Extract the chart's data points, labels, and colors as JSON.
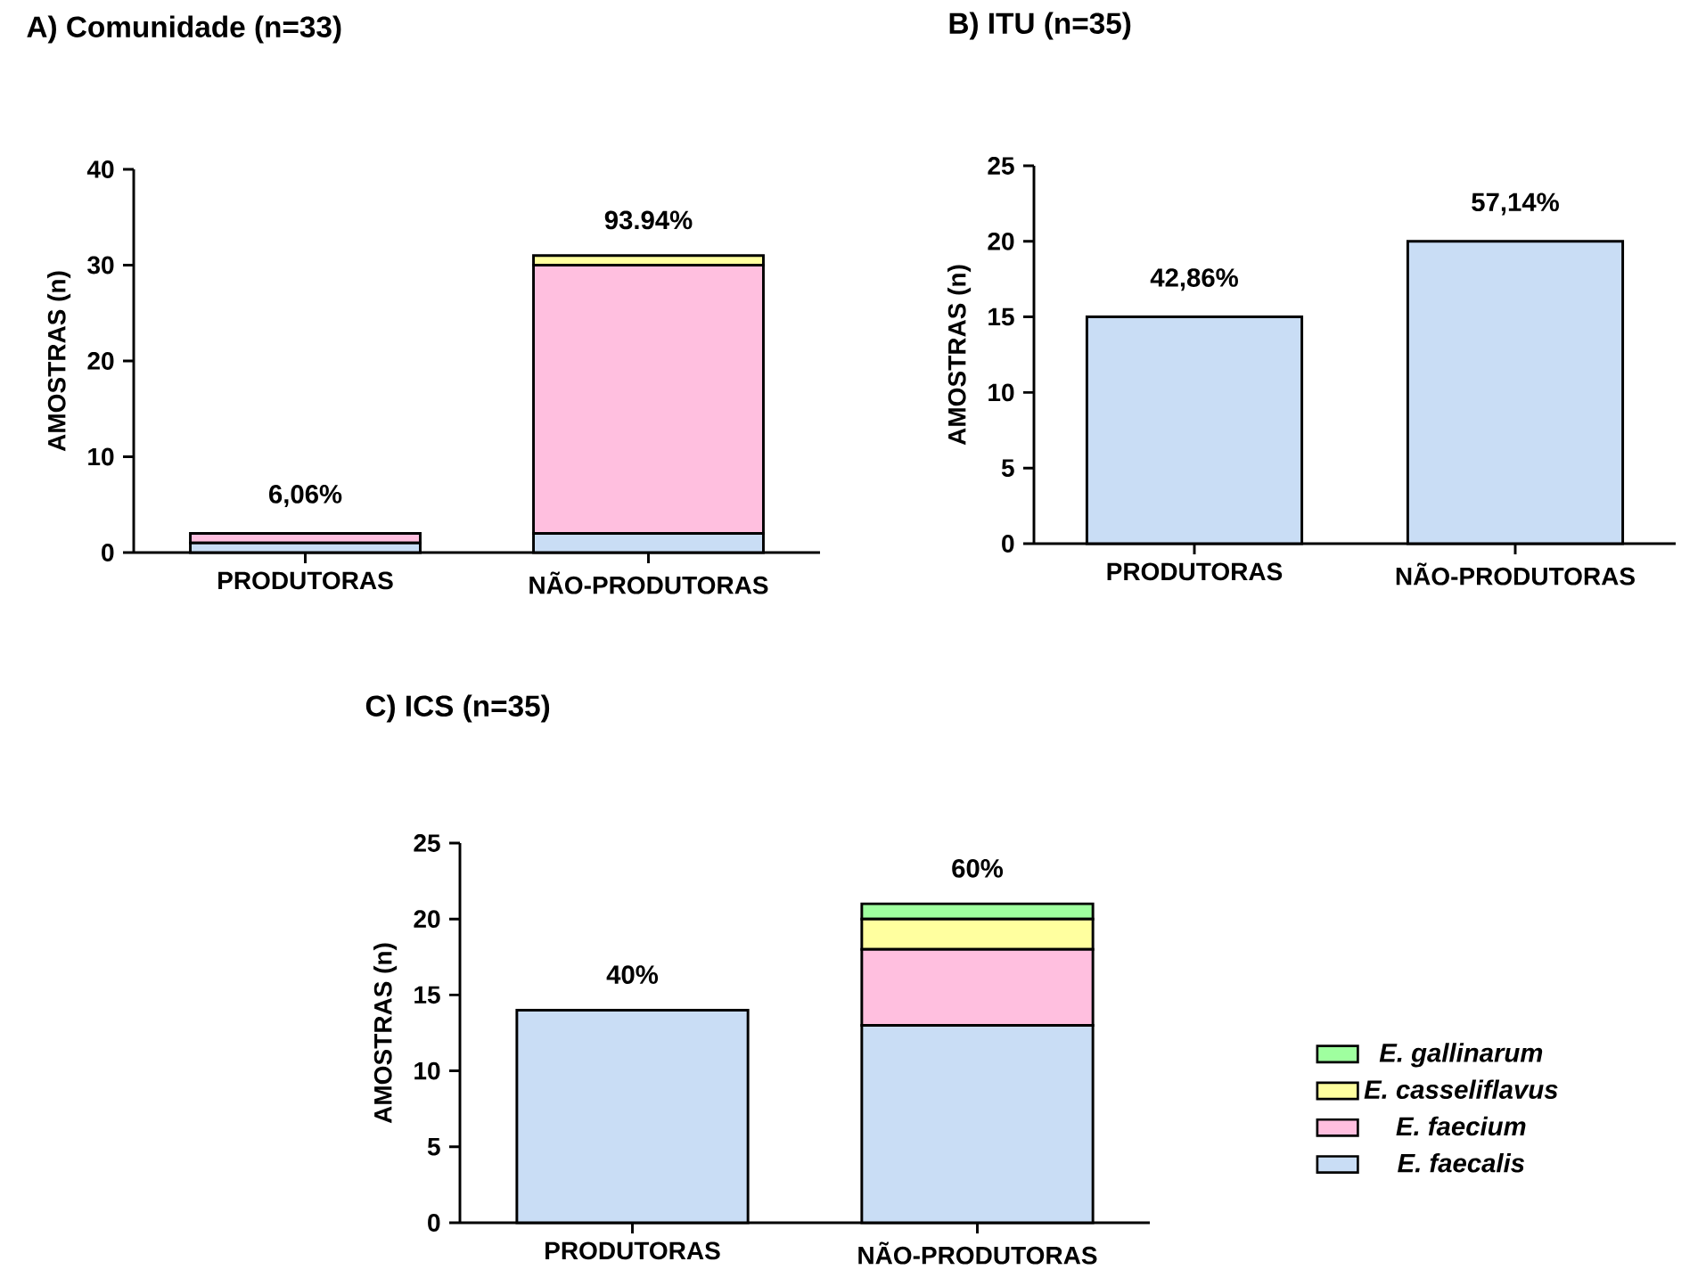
{
  "chart_data": [
    {
      "type": "bar",
      "title": "A) Comunidade (n=33)",
      "ylabel": "AMOSTRAS (n)",
      "categories": [
        "PRODUTORAS",
        "NÃO-PRODUTORAS"
      ],
      "stacked": true,
      "ylim": [
        0,
        40
      ],
      "yticks": [
        0,
        10,
        20,
        30,
        40
      ],
      "series": [
        {
          "color": "#c9ddf5",
          "values": [
            1,
            2
          ]
        },
        {
          "color": "#ffbfdf",
          "values": [
            1,
            28
          ]
        },
        {
          "color": "#ffff9f",
          "values": [
            0,
            1
          ]
        }
      ],
      "annotations": [
        "6,06%",
        "93.94%"
      ]
    },
    {
      "type": "bar",
      "title": "B) ITU (n=35)",
      "ylabel": "AMOSTRAS (n)",
      "categories": [
        "PRODUTORAS",
        "NÃO-PRODUTORAS"
      ],
      "ylim": [
        0,
        25
      ],
      "yticks": [
        0,
        5,
        10,
        15,
        20,
        25
      ],
      "series": [
        {
          "color": "#c9ddf5",
          "values": [
            15,
            20
          ]
        }
      ],
      "annotations": [
        "42,86%",
        "57,14%"
      ]
    },
    {
      "type": "bar",
      "title": "C) ICS (n=35)",
      "ylabel": "AMOSTRAS (n)",
      "categories": [
        "PRODUTORAS",
        "NÃO-PRODUTORAS"
      ],
      "stacked": true,
      "ylim": [
        0,
        25
      ],
      "yticks": [
        0,
        5,
        10,
        15,
        20,
        25
      ],
      "legend": "right",
      "series": [
        {
          "name": "E. faecalis",
          "color": "#c9ddf5",
          "values": [
            14,
            13
          ]
        },
        {
          "name": "E. faecium",
          "color": "#ffbfdf",
          "values": [
            0,
            5
          ]
        },
        {
          "name": "E. casseliflavus",
          "color": "#ffff9f",
          "values": [
            0,
            2
          ]
        },
        {
          "name": "E. gallinarum",
          "color": "#9fff9f",
          "values": [
            0,
            1
          ]
        }
      ],
      "annotations": [
        "40%",
        "60%"
      ]
    }
  ]
}
